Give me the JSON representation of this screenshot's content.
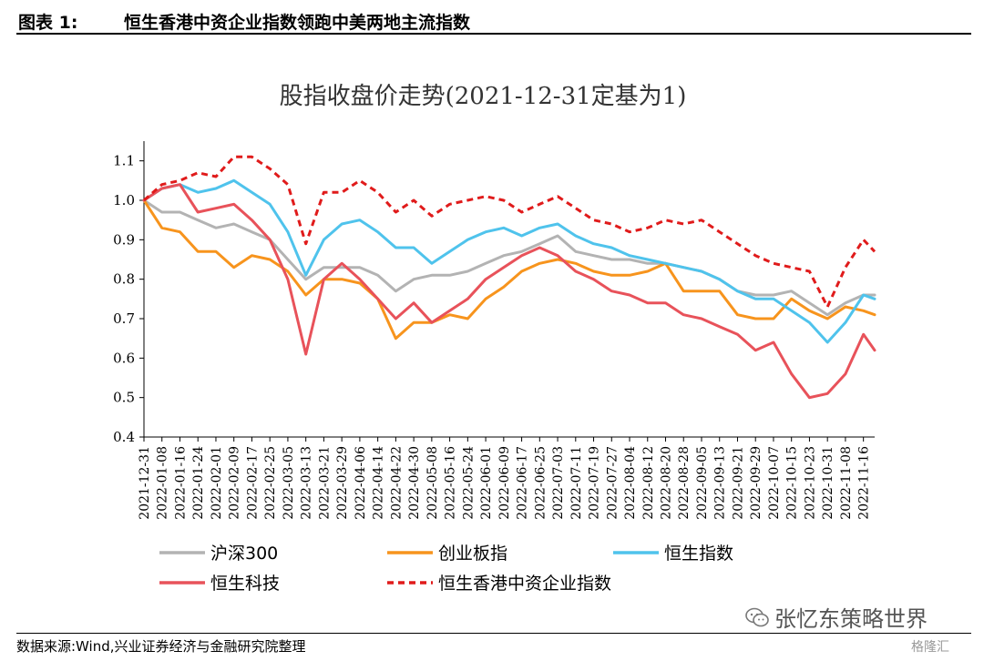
{
  "figure": {
    "label": "图表 1:",
    "title": "恒生香港中资企业指数领跑中美两地主流指数",
    "source": "数据来源:Wind,兴业证券经济与金融研究院整理",
    "watermark": "张忆东策略世界",
    "watermark2": "格隆汇"
  },
  "chart_data": {
    "type": "line",
    "title": "股指收盘价走势(2021-12-31定基为1)",
    "xlabel": "",
    "ylabel": "",
    "ylim": [
      0.4,
      1.15
    ],
    "yticks": [
      "0.4",
      "0.5",
      "0.6",
      "0.7",
      "0.8",
      "0.9",
      "1.0",
      "1.1"
    ],
    "x_tick_labels": [
      "2021-12-31",
      "2022-01-08",
      "2022-01-16",
      "2022-01-24",
      "2022-02-01",
      "2022-02-09",
      "2022-02-17",
      "2022-02-25",
      "2022-03-05",
      "2022-03-13",
      "2022-03-21",
      "2022-03-29",
      "2022-04-06",
      "2022-04-14",
      "2022-04-22",
      "2022-04-30",
      "2022-05-08",
      "2022-05-16",
      "2022-05-24",
      "2022-06-01",
      "2022-06-09",
      "2022-06-17",
      "2022-06-25",
      "2022-07-03",
      "2022-07-11",
      "2022-07-19",
      "2022-07-27",
      "2022-08-04",
      "2022-08-12",
      "2022-08-20",
      "2022-08-28",
      "2022-09-05",
      "2022-09-13",
      "2022-09-21",
      "2022-09-29",
      "2022-10-07",
      "2022-10-15",
      "2022-10-23",
      "2022-10-31",
      "2022-11-08",
      "2022-11-16"
    ],
    "x": [
      "2021-12-31",
      "2022-01-08",
      "2022-01-16",
      "2022-01-24",
      "2022-02-01",
      "2022-02-09",
      "2022-02-17",
      "2022-02-25",
      "2022-03-05",
      "2022-03-13",
      "2022-03-21",
      "2022-03-29",
      "2022-04-06",
      "2022-04-14",
      "2022-04-22",
      "2022-04-30",
      "2022-05-08",
      "2022-05-16",
      "2022-05-24",
      "2022-06-01",
      "2022-06-09",
      "2022-06-17",
      "2022-06-25",
      "2022-07-03",
      "2022-07-11",
      "2022-07-19",
      "2022-07-27",
      "2022-08-04",
      "2022-08-12",
      "2022-08-20",
      "2022-08-28",
      "2022-09-05",
      "2022-09-13",
      "2022-09-21",
      "2022-09-29",
      "2022-10-07",
      "2022-10-15",
      "2022-10-23",
      "2022-10-31",
      "2022-11-08",
      "2022-11-16",
      "2022-11-21"
    ],
    "series": [
      {
        "name": "沪深300",
        "color": "#b3b3b3",
        "dash": false,
        "values": [
          1.0,
          0.97,
          0.97,
          0.95,
          0.93,
          0.94,
          0.92,
          0.9,
          0.85,
          0.8,
          0.83,
          0.83,
          0.83,
          0.81,
          0.77,
          0.8,
          0.81,
          0.81,
          0.82,
          0.84,
          0.86,
          0.87,
          0.89,
          0.91,
          0.87,
          0.86,
          0.85,
          0.85,
          0.84,
          0.84,
          0.83,
          0.82,
          0.8,
          0.77,
          0.76,
          0.76,
          0.77,
          0.74,
          0.71,
          0.74,
          0.76,
          0.76
        ]
      },
      {
        "name": "创业板指",
        "color": "#f7941d",
        "dash": false,
        "values": [
          1.0,
          0.93,
          0.92,
          0.87,
          0.87,
          0.83,
          0.86,
          0.85,
          0.82,
          0.76,
          0.8,
          0.8,
          0.79,
          0.75,
          0.65,
          0.69,
          0.69,
          0.71,
          0.7,
          0.75,
          0.78,
          0.82,
          0.84,
          0.85,
          0.84,
          0.82,
          0.81,
          0.81,
          0.82,
          0.84,
          0.77,
          0.77,
          0.77,
          0.71,
          0.7,
          0.7,
          0.75,
          0.72,
          0.7,
          0.73,
          0.72,
          0.71
        ]
      },
      {
        "name": "恒生指数",
        "color": "#4fc3ec",
        "dash": false,
        "values": [
          1.0,
          1.03,
          1.04,
          1.02,
          1.03,
          1.05,
          1.02,
          0.99,
          0.92,
          0.81,
          0.9,
          0.94,
          0.95,
          0.92,
          0.88,
          0.88,
          0.84,
          0.87,
          0.9,
          0.92,
          0.93,
          0.91,
          0.93,
          0.94,
          0.91,
          0.89,
          0.88,
          0.86,
          0.85,
          0.84,
          0.83,
          0.82,
          0.8,
          0.77,
          0.75,
          0.75,
          0.72,
          0.69,
          0.64,
          0.69,
          0.76,
          0.75
        ]
      },
      {
        "name": "恒生科技",
        "color": "#e8525a",
        "dash": false,
        "values": [
          1.0,
          1.03,
          1.04,
          0.97,
          0.98,
          0.99,
          0.95,
          0.9,
          0.8,
          0.61,
          0.8,
          0.84,
          0.8,
          0.75,
          0.7,
          0.74,
          0.69,
          0.72,
          0.75,
          0.8,
          0.83,
          0.86,
          0.88,
          0.86,
          0.82,
          0.8,
          0.77,
          0.76,
          0.74,
          0.74,
          0.71,
          0.7,
          0.68,
          0.66,
          0.62,
          0.64,
          0.56,
          0.5,
          0.51,
          0.56,
          0.66,
          0.62
        ]
      },
      {
        "name": "恒生香港中资企业指数",
        "color": "#e01b1b",
        "dash": true,
        "values": [
          1.0,
          1.04,
          1.05,
          1.07,
          1.06,
          1.11,
          1.11,
          1.08,
          1.04,
          0.89,
          1.02,
          1.02,
          1.05,
          1.02,
          0.97,
          1.0,
          0.96,
          0.99,
          1.0,
          1.01,
          1.0,
          0.97,
          0.99,
          1.01,
          0.98,
          0.95,
          0.94,
          0.92,
          0.93,
          0.95,
          0.94,
          0.95,
          0.92,
          0.89,
          0.86,
          0.84,
          0.83,
          0.82,
          0.73,
          0.83,
          0.9,
          0.87
        ]
      }
    ],
    "legend_position": "bottom",
    "grid": false
  }
}
